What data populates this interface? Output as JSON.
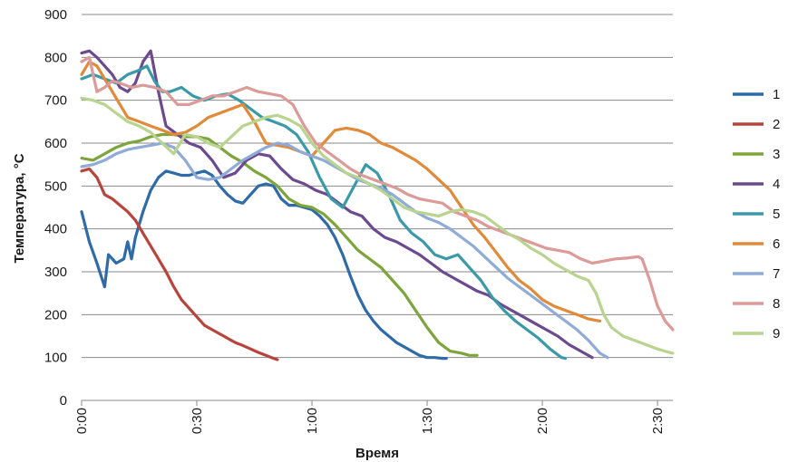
{
  "chart_data": {
    "type": "line",
    "xlabel": "Время",
    "ylabel": "Температура, °C",
    "x_unit": "time h:mm",
    "xlim": [
      "0:00",
      "2:34"
    ],
    "ylim": [
      0,
      900
    ],
    "x_ticks": [
      "0:00",
      "0:30",
      "1:00",
      "1:30",
      "2:00",
      "2:30"
    ],
    "y_ticks": [
      0,
      100,
      200,
      300,
      400,
      500,
      600,
      700,
      800,
      900
    ],
    "grid": "horizontal",
    "legend_position": "right",
    "series": [
      {
        "name": "1",
        "color": "#2e6ba8",
        "x": [
          "0:00",
          "0:02",
          "0:04",
          "0:06",
          "0:07",
          "0:09",
          "0:11",
          "0:12",
          "0:13",
          "0:14",
          "0:16",
          "0:18",
          "0:20",
          "0:22",
          "0:24",
          "0:26",
          "0:28",
          "0:30",
          "0:32",
          "0:34",
          "0:36",
          "0:38",
          "0:40",
          "0:42",
          "0:44",
          "0:46",
          "0:48",
          "0:50",
          "0:52",
          "0:54",
          "0:56",
          "0:58",
          "1:00",
          "1:02",
          "1:04",
          "1:06",
          "1:08",
          "1:10",
          "1:12",
          "1:14",
          "1:16",
          "1:18",
          "1:20",
          "1:22",
          "1:24",
          "1:26",
          "1:28",
          "1:30",
          "1:32",
          "1:34",
          "1:35"
        ],
        "y": [
          440,
          370,
          320,
          265,
          340,
          320,
          330,
          370,
          330,
          380,
          440,
          490,
          520,
          535,
          530,
          525,
          525,
          530,
          535,
          525,
          500,
          480,
          465,
          460,
          480,
          500,
          505,
          500,
          470,
          455,
          455,
          450,
          445,
          430,
          410,
          380,
          340,
          290,
          245,
          210,
          185,
          165,
          150,
          135,
          125,
          115,
          105,
          100,
          100,
          98,
          98
        ]
      },
      {
        "name": "2",
        "color": "#b8453c",
        "x": [
          "0:00",
          "0:02",
          "0:04",
          "0:06",
          "0:08",
          "0:10",
          "0:12",
          "0:14",
          "0:16",
          "0:18",
          "0:20",
          "0:22",
          "0:24",
          "0:26",
          "0:28",
          "0:30",
          "0:32",
          "0:34",
          "0:36",
          "0:38",
          "0:40",
          "0:42",
          "0:44",
          "0:46",
          "0:48",
          "0:50",
          "0:51"
        ],
        "y": [
          535,
          540,
          520,
          480,
          470,
          455,
          440,
          420,
          390,
          360,
          330,
          300,
          265,
          235,
          215,
          195,
          175,
          165,
          155,
          145,
          135,
          128,
          120,
          112,
          105,
          98,
          95
        ]
      },
      {
        "name": "3",
        "color": "#7da53c",
        "x": [
          "0:00",
          "0:03",
          "0:06",
          "0:09",
          "0:12",
          "0:15",
          "0:18",
          "0:21",
          "0:24",
          "0:27",
          "0:30",
          "0:33",
          "0:36",
          "0:39",
          "0:42",
          "0:45",
          "0:48",
          "0:51",
          "0:54",
          "0:57",
          "1:00",
          "1:03",
          "1:06",
          "1:09",
          "1:12",
          "1:15",
          "1:18",
          "1:21",
          "1:24",
          "1:27",
          "1:30",
          "1:33",
          "1:36",
          "1:39",
          "1:41",
          "1:43"
        ],
        "y": [
          565,
          560,
          575,
          590,
          600,
          605,
          615,
          620,
          620,
          615,
          615,
          610,
          590,
          570,
          555,
          535,
          520,
          500,
          470,
          455,
          450,
          435,
          410,
          380,
          350,
          330,
          310,
          280,
          250,
          210,
          170,
          135,
          115,
          110,
          105,
          105
        ]
      },
      {
        "name": "4",
        "color": "#6b4a8e",
        "x": [
          "0:00",
          "0:02",
          "0:04",
          "0:06",
          "0:08",
          "0:10",
          "0:12",
          "0:14",
          "0:16",
          "0:18",
          "0:20",
          "0:22",
          "0:25",
          "0:28",
          "0:31",
          "0:34",
          "0:37",
          "0:40",
          "0:43",
          "0:46",
          "0:49",
          "0:52",
          "0:55",
          "0:58",
          "1:01",
          "1:04",
          "1:07",
          "1:10",
          "1:13",
          "1:16",
          "1:19",
          "1:22",
          "1:25",
          "1:28",
          "1:31",
          "1:34",
          "1:37",
          "1:40",
          "1:43",
          "1:46",
          "1:49",
          "1:52",
          "1:55",
          "1:58",
          "2:01",
          "2:04",
          "2:07",
          "2:10",
          "2:13"
        ],
        "y": [
          810,
          815,
          800,
          780,
          760,
          730,
          720,
          740,
          790,
          815,
          720,
          640,
          620,
          600,
          590,
          560,
          520,
          530,
          560,
          575,
          570,
          540,
          515,
          505,
          490,
          480,
          460,
          440,
          430,
          400,
          380,
          370,
          355,
          340,
          320,
          300,
          285,
          270,
          255,
          245,
          225,
          210,
          195,
          180,
          165,
          150,
          130,
          115,
          100
        ]
      },
      {
        "name": "5",
        "color": "#3a9aa8",
        "x": [
          "0:00",
          "0:03",
          "0:06",
          "0:09",
          "0:12",
          "0:15",
          "0:17",
          "0:19",
          "0:21",
          "0:23",
          "0:26",
          "0:29",
          "0:32",
          "0:35",
          "0:38",
          "0:41",
          "0:44",
          "0:47",
          "0:50",
          "0:53",
          "0:56",
          "0:59",
          "1:02",
          "1:05",
          "1:08",
          "1:11",
          "1:14",
          "1:17",
          "1:20",
          "1:23",
          "1:26",
          "1:29",
          "1:32",
          "1:35",
          "1:38",
          "1:41",
          "1:44",
          "1:47",
          "1:50",
          "1:53",
          "1:56",
          "1:59",
          "2:02",
          "2:05",
          "2:06"
        ],
        "y": [
          750,
          760,
          750,
          740,
          760,
          770,
          780,
          745,
          720,
          720,
          730,
          710,
          700,
          710,
          715,
          700,
          680,
          660,
          650,
          640,
          620,
          580,
          520,
          470,
          450,
          500,
          550,
          530,
          480,
          420,
          390,
          370,
          340,
          330,
          340,
          310,
          280,
          240,
          210,
          185,
          165,
          145,
          120,
          100,
          98
        ]
      },
      {
        "name": "6",
        "color": "#e08a3a",
        "x": [
          "0:00",
          "0:02",
          "0:04",
          "0:06",
          "0:08",
          "0:10",
          "0:12",
          "0:15",
          "0:18",
          "0:21",
          "0:24",
          "0:27",
          "0:30",
          "0:33",
          "0:36",
          "0:39",
          "0:42",
          "0:45",
          "0:48",
          "0:51",
          "0:54",
          "0:57",
          "1:00",
          "1:03",
          "1:06",
          "1:09",
          "1:12",
          "1:15",
          "1:18",
          "1:21",
          "1:24",
          "1:27",
          "1:30",
          "1:33",
          "1:36",
          "1:39",
          "1:42",
          "1:45",
          "1:48",
          "1:51",
          "1:54",
          "1:57",
          "2:00",
          "2:03",
          "2:06",
          "2:09",
          "2:12",
          "2:15"
        ],
        "y": [
          760,
          790,
          780,
          750,
          720,
          690,
          660,
          650,
          640,
          630,
          620,
          625,
          640,
          660,
          670,
          680,
          690,
          650,
          600,
          595,
          590,
          580,
          570,
          600,
          630,
          635,
          630,
          620,
          600,
          590,
          575,
          560,
          540,
          515,
          490,
          450,
          410,
          380,
          345,
          310,
          280,
          260,
          235,
          220,
          210,
          200,
          190,
          185
        ]
      },
      {
        "name": "7",
        "color": "#8fabd6",
        "x": [
          "0:00",
          "0:03",
          "0:06",
          "0:09",
          "0:12",
          "0:15",
          "0:18",
          "0:21",
          "0:24",
          "0:27",
          "0:30",
          "0:33",
          "0:36",
          "0:39",
          "0:42",
          "0:45",
          "0:48",
          "0:51",
          "0:54",
          "0:57",
          "1:00",
          "1:03",
          "1:06",
          "1:09",
          "1:12",
          "1:15",
          "1:18",
          "1:21",
          "1:24",
          "1:27",
          "1:30",
          "1:33",
          "1:36",
          "1:39",
          "1:42",
          "1:45",
          "1:48",
          "1:51",
          "1:54",
          "1:57",
          "2:00",
          "2:03",
          "2:06",
          "2:09",
          "2:12",
          "2:15",
          "2:17"
        ],
        "y": [
          545,
          550,
          560,
          575,
          585,
          590,
          595,
          600,
          590,
          560,
          520,
          515,
          520,
          540,
          560,
          575,
          590,
          600,
          595,
          580,
          570,
          560,
          545,
          530,
          515,
          505,
          495,
          480,
          460,
          440,
          425,
          415,
          400,
          380,
          360,
          335,
          310,
          285,
          265,
          245,
          225,
          205,
          185,
          165,
          140,
          110,
          100
        ]
      },
      {
        "name": "8",
        "color": "#dc9a98",
        "x": [
          "0:00",
          "0:02",
          "0:04",
          "0:06",
          "0:08",
          "0:10",
          "0:13",
          "0:16",
          "0:19",
          "0:22",
          "0:25",
          "0:28",
          "0:31",
          "0:34",
          "0:37",
          "0:40",
          "0:43",
          "0:46",
          "0:49",
          "0:52",
          "0:55",
          "0:58",
          "1:01",
          "1:04",
          "1:07",
          "1:10",
          "1:13",
          "1:16",
          "1:19",
          "1:22",
          "1:25",
          "1:28",
          "1:31",
          "1:34",
          "1:37",
          "1:40",
          "1:43",
          "1:46",
          "1:49",
          "1:52",
          "1:55",
          "1:58",
          "2:01",
          "2:04",
          "2:07",
          "2:10",
          "2:13",
          "2:16",
          "2:19",
          "2:22",
          "2:25",
          "2:26",
          "2:28",
          "2:30",
          "2:32",
          "2:34"
        ],
        "y": [
          790,
          800,
          720,
          730,
          745,
          740,
          730,
          735,
          730,
          720,
          690,
          690,
          700,
          710,
          710,
          720,
          730,
          720,
          715,
          710,
          690,
          640,
          600,
          580,
          560,
          540,
          525,
          515,
          505,
          495,
          480,
          470,
          465,
          460,
          440,
          430,
          420,
          405,
          395,
          385,
          375,
          365,
          355,
          350,
          345,
          330,
          320,
          325,
          330,
          332,
          335,
          330,
          280,
          220,
          185,
          165
        ]
      },
      {
        "name": "9",
        "color": "#b8d48e",
        "x": [
          "0:00",
          "0:03",
          "0:06",
          "0:09",
          "0:12",
          "0:15",
          "0:18",
          "0:21",
          "0:24",
          "0:27",
          "0:30",
          "0:33",
          "0:36",
          "0:39",
          "0:42",
          "0:45",
          "0:48",
          "0:51",
          "0:54",
          "0:57",
          "1:00",
          "1:03",
          "1:06",
          "1:09",
          "1:12",
          "1:15",
          "1:18",
          "1:21",
          "1:24",
          "1:27",
          "1:30",
          "1:33",
          "1:36",
          "1:39",
          "1:42",
          "1:45",
          "1:48",
          "1:51",
          "1:54",
          "1:57",
          "2:00",
          "2:03",
          "2:06",
          "2:09",
          "2:12",
          "2:14",
          "2:16",
          "2:18",
          "2:21",
          "2:24",
          "2:27",
          "2:30",
          "2:33",
          "2:34"
        ],
        "y": [
          705,
          700,
          690,
          670,
          650,
          640,
          625,
          600,
          575,
          620,
          615,
          600,
          590,
          615,
          640,
          650,
          660,
          665,
          655,
          640,
          600,
          570,
          550,
          530,
          520,
          505,
          490,
          470,
          450,
          440,
          435,
          430,
          440,
          445,
          440,
          430,
          410,
          390,
          375,
          355,
          340,
          320,
          305,
          290,
          280,
          250,
          200,
          170,
          150,
          140,
          130,
          120,
          112,
          110
        ]
      }
    ]
  }
}
